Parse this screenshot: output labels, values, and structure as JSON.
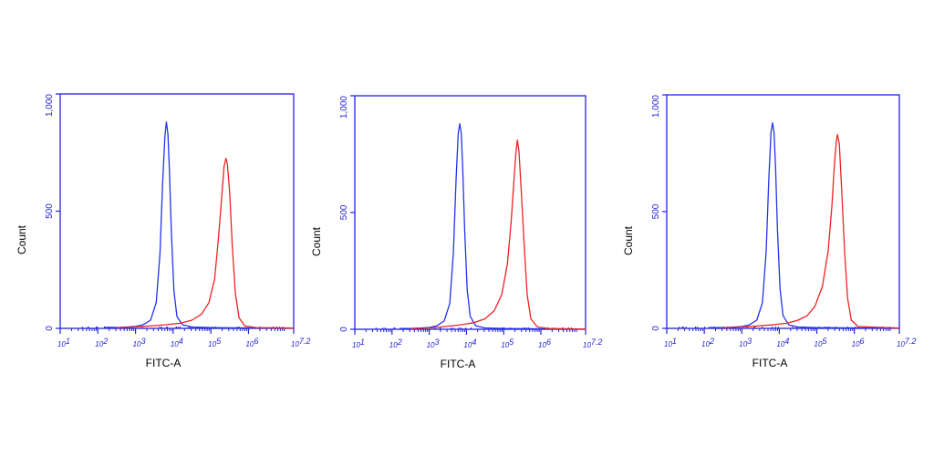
{
  "colors": {
    "axis": "#2222dd",
    "control": "#2233ee",
    "sample": "#ee2222",
    "text": "#000000"
  },
  "chart_data": [
    {
      "type": "line",
      "xlabel": "FITC-A",
      "ylabel": "Count",
      "xscale": "log",
      "xlim": [
        1,
        7.2
      ],
      "ylim": [
        0,
        1000
      ],
      "x_ticks": [
        {
          "value": 1,
          "base": "10",
          "exp": "1"
        },
        {
          "value": 2,
          "base": "10",
          "exp": "2"
        },
        {
          "value": 3,
          "base": "10",
          "exp": "3"
        },
        {
          "value": 4,
          "base": "10",
          "exp": "4"
        },
        {
          "value": 5,
          "base": "10",
          "exp": "5"
        },
        {
          "value": 6,
          "base": "10",
          "exp": "6"
        },
        {
          "value": 7.2,
          "base": "10",
          "exp": "7.2"
        }
      ],
      "y_ticks": [
        {
          "value": 0,
          "label": "0"
        },
        {
          "value": 500,
          "label": "500"
        },
        {
          "value": 1000,
          "label": "1,000"
        }
      ],
      "series": [
        {
          "role": "control",
          "color": "#2233ee",
          "points": [
            [
              2.2,
              3
            ],
            [
              2.6,
              4
            ],
            [
              3.0,
              8
            ],
            [
              3.2,
              15
            ],
            [
              3.4,
              35
            ],
            [
              3.55,
              110
            ],
            [
              3.65,
              320
            ],
            [
              3.72,
              620
            ],
            [
              3.78,
              820
            ],
            [
              3.82,
              880
            ],
            [
              3.86,
              830
            ],
            [
              3.9,
              680
            ],
            [
              3.95,
              420
            ],
            [
              4.02,
              160
            ],
            [
              4.1,
              50
            ],
            [
              4.25,
              15
            ],
            [
              4.5,
              6
            ],
            [
              5.0,
              3
            ],
            [
              6.0,
              2
            ],
            [
              7.2,
              1
            ]
          ]
        },
        {
          "role": "sample",
          "color": "#ee2222",
          "points": [
            [
              2.5,
              2
            ],
            [
              3.2,
              8
            ],
            [
              3.8,
              15
            ],
            [
              4.2,
              22
            ],
            [
              4.5,
              35
            ],
            [
              4.75,
              60
            ],
            [
              4.95,
              110
            ],
            [
              5.1,
              210
            ],
            [
              5.2,
              380
            ],
            [
              5.3,
              580
            ],
            [
              5.35,
              690
            ],
            [
              5.4,
              725
            ],
            [
              5.44,
              700
            ],
            [
              5.5,
              580
            ],
            [
              5.57,
              350
            ],
            [
              5.65,
              150
            ],
            [
              5.75,
              45
            ],
            [
              5.9,
              10
            ],
            [
              6.2,
              3
            ],
            [
              7.2,
              1
            ]
          ]
        }
      ]
    },
    {
      "type": "line",
      "xlabel": "FITC-A",
      "ylabel": "Count",
      "xscale": "log",
      "xlim": [
        1,
        7.2
      ],
      "ylim": [
        0,
        1000
      ],
      "x_ticks": [
        {
          "value": 1,
          "base": "10",
          "exp": "1"
        },
        {
          "value": 2,
          "base": "10",
          "exp": "2"
        },
        {
          "value": 3,
          "base": "10",
          "exp": "3"
        },
        {
          "value": 4,
          "base": "10",
          "exp": "4"
        },
        {
          "value": 5,
          "base": "10",
          "exp": "5"
        },
        {
          "value": 6,
          "base": "10",
          "exp": "6"
        },
        {
          "value": 7.2,
          "base": "10",
          "exp": "7.2"
        }
      ],
      "y_ticks": [
        {
          "value": 0,
          "label": "0"
        },
        {
          "value": 500,
          "label": "500"
        },
        {
          "value": 1000,
          "label": "1,000"
        }
      ],
      "series": [
        {
          "role": "control",
          "color": "#2233ee",
          "points": [
            [
              2.2,
              3
            ],
            [
              2.6,
              4
            ],
            [
              3.0,
              8
            ],
            [
              3.2,
              15
            ],
            [
              3.4,
              35
            ],
            [
              3.55,
              110
            ],
            [
              3.65,
              330
            ],
            [
              3.72,
              640
            ],
            [
              3.78,
              840
            ],
            [
              3.82,
              880
            ],
            [
              3.86,
              840
            ],
            [
              3.9,
              690
            ],
            [
              3.95,
              430
            ],
            [
              4.02,
              170
            ],
            [
              4.1,
              55
            ],
            [
              4.25,
              15
            ],
            [
              4.5,
              6
            ],
            [
              5.0,
              3
            ],
            [
              6.0,
              2
            ],
            [
              7.2,
              1
            ]
          ]
        },
        {
          "role": "sample",
          "color": "#ee2222",
          "points": [
            [
              2.5,
              2
            ],
            [
              3.2,
              8
            ],
            [
              3.8,
              18
            ],
            [
              4.2,
              28
            ],
            [
              4.5,
              45
            ],
            [
              4.75,
              80
            ],
            [
              4.95,
              150
            ],
            [
              5.1,
              280
            ],
            [
              5.2,
              460
            ],
            [
              5.28,
              650
            ],
            [
              5.33,
              760
            ],
            [
              5.37,
              810
            ],
            [
              5.41,
              760
            ],
            [
              5.47,
              600
            ],
            [
              5.55,
              360
            ],
            [
              5.63,
              150
            ],
            [
              5.73,
              45
            ],
            [
              5.9,
              10
            ],
            [
              6.2,
              3
            ],
            [
              7.2,
              1
            ]
          ]
        }
      ]
    },
    {
      "type": "line",
      "xlabel": "FITC-A",
      "ylabel": "Count",
      "xscale": "log",
      "xlim": [
        1,
        7.2
      ],
      "ylim": [
        0,
        1000
      ],
      "x_ticks": [
        {
          "value": 1,
          "base": "10",
          "exp": "1"
        },
        {
          "value": 2,
          "base": "10",
          "exp": "2"
        },
        {
          "value": 3,
          "base": "10",
          "exp": "3"
        },
        {
          "value": 4,
          "base": "10",
          "exp": "4"
        },
        {
          "value": 5,
          "base": "10",
          "exp": "5"
        },
        {
          "value": 6,
          "base": "10",
          "exp": "6"
        },
        {
          "value": 7.2,
          "base": "10",
          "exp": "7.2"
        }
      ],
      "y_ticks": [
        {
          "value": 0,
          "label": "0"
        },
        {
          "value": 500,
          "label": "500"
        },
        {
          "value": 1000,
          "label": "1,000"
        }
      ],
      "series": [
        {
          "role": "control",
          "color": "#2233ee",
          "points": [
            [
              2.2,
              3
            ],
            [
              2.6,
              4
            ],
            [
              3.0,
              8
            ],
            [
              3.2,
              15
            ],
            [
              3.4,
              35
            ],
            [
              3.55,
              110
            ],
            [
              3.65,
              330
            ],
            [
              3.72,
              640
            ],
            [
              3.78,
              840
            ],
            [
              3.82,
              880
            ],
            [
              3.86,
              840
            ],
            [
              3.9,
              690
            ],
            [
              3.95,
              430
            ],
            [
              4.02,
              170
            ],
            [
              4.1,
              55
            ],
            [
              4.25,
              15
            ],
            [
              4.5,
              6
            ],
            [
              5.0,
              3
            ],
            [
              6.0,
              2
            ],
            [
              7.2,
              1
            ]
          ]
        },
        {
          "role": "sample",
          "color": "#ee2222",
          "points": [
            [
              2.5,
              2
            ],
            [
              3.2,
              8
            ],
            [
              3.8,
              15
            ],
            [
              4.2,
              22
            ],
            [
              4.5,
              35
            ],
            [
              4.75,
              55
            ],
            [
              4.95,
              95
            ],
            [
              5.15,
              180
            ],
            [
              5.3,
              330
            ],
            [
              5.4,
              520
            ],
            [
              5.47,
              700
            ],
            [
              5.52,
              800
            ],
            [
              5.55,
              830
            ],
            [
              5.6,
              790
            ],
            [
              5.66,
              600
            ],
            [
              5.74,
              330
            ],
            [
              5.82,
              130
            ],
            [
              5.92,
              35
            ],
            [
              6.1,
              8
            ],
            [
              7.2,
              1
            ]
          ]
        }
      ]
    }
  ]
}
